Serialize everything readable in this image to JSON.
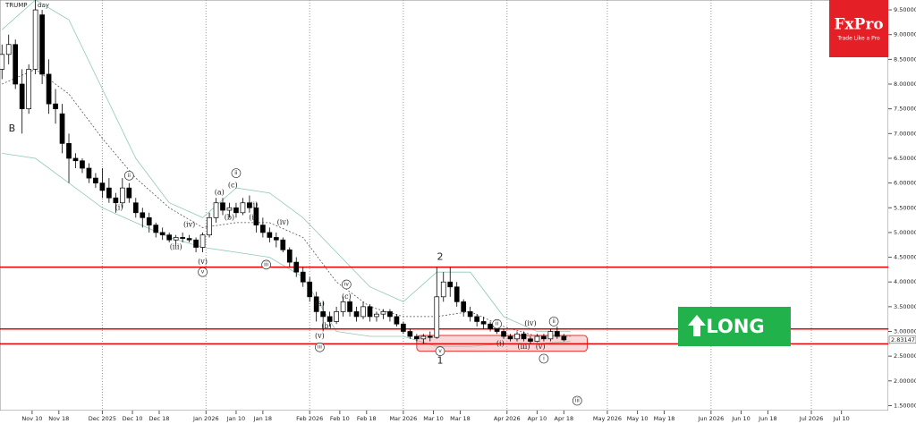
{
  "chart_data": {
    "type": "candlestick",
    "title": "TRUMP",
    "timeframe": "day",
    "xlim": [
      -0.6,
      265
    ],
    "ylim": [
      1.4,
      9.7
    ],
    "xticks": [
      {
        "value": 9,
        "label": "Nov 10"
      },
      {
        "value": 17,
        "label": "Nov 18"
      },
      {
        "value": 30,
        "label": "Dec 2025"
      },
      {
        "value": 39,
        "label": "Dec 10"
      },
      {
        "value": 47,
        "label": "Dec 18"
      },
      {
        "value": 61,
        "label": "Jan 2026"
      },
      {
        "value": 70,
        "label": "Jan 10"
      },
      {
        "value": 78,
        "label": "Jan 18"
      },
      {
        "value": 92,
        "label": "Feb 2026"
      },
      {
        "value": 101,
        "label": "Feb 10"
      },
      {
        "value": 109,
        "label": "Feb 18"
      },
      {
        "value": 120,
        "label": "Mar 2026"
      },
      {
        "value": 129,
        "label": "Mar 10"
      },
      {
        "value": 137,
        "label": "Mar 18"
      },
      {
        "value": 151,
        "label": "Apr 2026"
      },
      {
        "value": 160,
        "label": "Apr 10"
      },
      {
        "value": 168,
        "label": "Apr 18"
      },
      {
        "value": 181,
        "label": "May 2026"
      },
      {
        "value": 190,
        "label": "May 10"
      },
      {
        "value": 198,
        "label": "May 18"
      },
      {
        "value": 212,
        "label": "Jun 2026"
      },
      {
        "value": 221,
        "label": "Jun 10"
      },
      {
        "value": 229,
        "label": "Jun 18"
      },
      {
        "value": 242,
        "label": "Jul 2026"
      },
      {
        "value": 251,
        "label": "Jul 10"
      }
    ],
    "yticks": [
      {
        "value": 9.5,
        "label": "9.50000"
      },
      {
        "value": 9,
        "label": "9.00000"
      },
      {
        "value": 8.5,
        "label": "8.50000"
      },
      {
        "value": 8,
        "label": "8.00000"
      },
      {
        "value": 7.5,
        "label": "7.50000"
      },
      {
        "value": 7,
        "label": "7.00000"
      },
      {
        "value": 6.5,
        "label": "6.50000"
      },
      {
        "value": 6,
        "label": "6.00000"
      },
      {
        "value": 5.5,
        "label": "5.50000"
      },
      {
        "value": 5,
        "label": "5.00000"
      },
      {
        "value": 4.5,
        "label": "4.50000"
      },
      {
        "value": 4,
        "label": "4.00000"
      },
      {
        "value": 3.5,
        "label": "3.50000"
      },
      {
        "value": 3,
        "label": "3.00000"
      },
      {
        "value": 2.5,
        "label": "2.50000"
      },
      {
        "value": 2,
        "label": "2.00000"
      },
      {
        "value": 1.5,
        "label": "1.50000"
      }
    ],
    "x": [
      0,
      2,
      4,
      6,
      8,
      10,
      12,
      14,
      16,
      18,
      20,
      22,
      24,
      26,
      28,
      30,
      32,
      34,
      36,
      38,
      40,
      42,
      44,
      46,
      48,
      50,
      52,
      54,
      56,
      58,
      60,
      62,
      64,
      66,
      68,
      70,
      72,
      74,
      76,
      78,
      80,
      82,
      84,
      86,
      88,
      90,
      92,
      94,
      96,
      98,
      100,
      102,
      104,
      106,
      108,
      110,
      112,
      114,
      116,
      118,
      120,
      122,
      124,
      126,
      128,
      130,
      132,
      134,
      136,
      138,
      140,
      142,
      144,
      146,
      148,
      150,
      152,
      154,
      156,
      158,
      160,
      162,
      164,
      166,
      168
    ],
    "open": [
      8.3,
      8.6,
      8.8,
      8.0,
      7.5,
      8.3,
      9.4,
      8.2,
      7.6,
      7.4,
      6.8,
      6.5,
      6.45,
      6.3,
      6.1,
      6.0,
      5.9,
      5.7,
      5.6,
      5.9,
      5.6,
      5.4,
      5.3,
      5.15,
      5.0,
      4.95,
      4.85,
      4.9,
      4.88,
      4.85,
      4.7,
      4.95,
      5.3,
      5.6,
      5.45,
      5.5,
      5.4,
      5.6,
      5.5,
      5.15,
      5.0,
      4.9,
      4.85,
      4.65,
      4.4,
      4.2,
      4.0,
      3.7,
      3.4,
      3.3,
      3.2,
      3.4,
      3.6,
      3.4,
      3.3,
      3.5,
      3.3,
      3.35,
      3.4,
      3.3,
      3.15,
      3.0,
      2.9,
      2.85,
      2.9,
      2.88,
      3.7,
      4.0,
      3.9,
      3.6,
      3.4,
      3.3,
      3.2,
      3.15,
      3.05,
      3.0,
      2.9,
      2.85,
      2.95,
      2.85,
      2.8,
      2.9,
      2.85,
      3.0,
      2.9
    ],
    "high": [
      8.8,
      9.0,
      8.9,
      8.3,
      8.4,
      9.9,
      9.5,
      8.5,
      7.9,
      7.6,
      7.0,
      6.6,
      6.5,
      6.4,
      6.2,
      6.3,
      6.1,
      5.8,
      6.1,
      6.0,
      5.7,
      5.5,
      5.4,
      5.2,
      5.1,
      5.0,
      4.95,
      5.0,
      4.95,
      4.9,
      5.0,
      5.4,
      5.7,
      5.7,
      5.6,
      5.6,
      5.7,
      5.75,
      5.6,
      5.3,
      5.1,
      5.0,
      4.9,
      4.7,
      4.5,
      4.3,
      4.1,
      3.8,
      3.6,
      3.4,
      3.5,
      3.7,
      3.65,
      3.5,
      3.6,
      3.55,
      3.4,
      3.45,
      3.45,
      3.35,
      3.2,
      3.05,
      2.95,
      2.95,
      3.0,
      4.3,
      4.2,
      4.3,
      4.0,
      3.65,
      3.5,
      3.35,
      3.3,
      3.2,
      3.1,
      3.05,
      2.95,
      3.0,
      3.0,
      2.9,
      2.95,
      2.95,
      3.05,
      3.1,
      2.95
    ],
    "low": [
      8.1,
      8.4,
      7.9,
      7.0,
      7.4,
      8.2,
      8.0,
      7.4,
      7.2,
      6.6,
      6.0,
      6.3,
      6.2,
      6.0,
      5.9,
      5.7,
      5.6,
      5.4,
      5.5,
      5.6,
      5.3,
      5.1,
      5.0,
      4.9,
      4.85,
      4.8,
      4.75,
      4.8,
      4.8,
      4.6,
      4.6,
      4.9,
      5.2,
      5.35,
      5.3,
      5.3,
      5.35,
      5.4,
      5.0,
      4.9,
      4.8,
      4.7,
      4.6,
      4.3,
      4.1,
      3.9,
      3.6,
      3.2,
      3.0,
      3.1,
      3.15,
      3.3,
      3.3,
      3.2,
      3.25,
      3.2,
      3.2,
      3.25,
      3.2,
      3.1,
      2.95,
      2.85,
      2.8,
      2.75,
      2.8,
      2.85,
      3.6,
      3.7,
      3.5,
      3.3,
      3.2,
      3.1,
      3.05,
      3.0,
      2.95,
      2.85,
      2.8,
      2.8,
      2.8,
      2.75,
      2.78,
      2.8,
      2.8,
      2.85,
      2.8
    ],
    "close": [
      8.6,
      8.8,
      8.0,
      7.5,
      8.3,
      9.5,
      8.2,
      7.6,
      7.5,
      6.8,
      6.5,
      6.45,
      6.3,
      6.1,
      6.0,
      5.85,
      5.7,
      5.6,
      5.9,
      5.7,
      5.4,
      5.3,
      5.15,
      5.0,
      4.95,
      4.85,
      4.9,
      4.88,
      4.85,
      4.7,
      4.95,
      5.3,
      5.6,
      5.45,
      5.5,
      5.4,
      5.6,
      5.5,
      5.15,
      5.0,
      4.9,
      4.85,
      4.65,
      4.4,
      4.2,
      4.0,
      3.7,
      3.4,
      3.3,
      3.2,
      3.4,
      3.6,
      3.4,
      3.3,
      3.5,
      3.3,
      3.35,
      3.4,
      3.3,
      3.15,
      3.0,
      2.9,
      2.85,
      2.9,
      2.88,
      3.7,
      4.0,
      3.9,
      3.6,
      3.4,
      3.3,
      3.2,
      3.15,
      3.05,
      3.0,
      2.9,
      2.85,
      2.95,
      2.85,
      2.8,
      2.9,
      2.85,
      3.0,
      2.9,
      2.83
    ],
    "bands": {
      "x": [
        0,
        10,
        20,
        30,
        40,
        50,
        60,
        70,
        80,
        90,
        100,
        110,
        120,
        130,
        140,
        150,
        160,
        170
      ],
      "upper": [
        9.1,
        9.7,
        9.3,
        7.9,
        6.5,
        5.6,
        5.3,
        5.9,
        5.8,
        5.3,
        4.6,
        3.9,
        3.6,
        4.2,
        4.2,
        3.3,
        3.0,
        3.0
      ],
      "middle": [
        8.0,
        8.3,
        7.8,
        6.9,
        6.1,
        5.5,
        5.1,
        5.2,
        5.2,
        4.9,
        4.0,
        3.5,
        3.3,
        3.3,
        3.4,
        3.1,
        2.9,
        2.9
      ],
      "lower": [
        6.6,
        6.5,
        6.0,
        5.5,
        5.2,
        4.9,
        4.7,
        4.6,
        4.5,
        4.1,
        3.0,
        2.9,
        2.9,
        2.7,
        2.7,
        2.75,
        2.75,
        2.8
      ]
    },
    "levels": [
      4.3,
      3.05,
      2.75
    ],
    "zone": {
      "x": [
        124,
        175
      ],
      "y": [
        2.6,
        2.92
      ]
    },
    "last_price": 2.83147,
    "annotations": [
      {
        "text": "B",
        "x": 3,
        "y": 7.1,
        "circled": false
      },
      {
        "text": "2",
        "x": 131,
        "y": 4.5,
        "circled": false
      },
      {
        "text": "1",
        "x": 131,
        "y": 2.4,
        "circled": false
      },
      {
        "text": "ii",
        "x": 38,
        "y": 6.15,
        "circled": true
      },
      {
        "text": "(i)",
        "x": 35,
        "y": 5.5,
        "circled": false
      },
      {
        "text": "(iii)",
        "x": 52,
        "y": 4.7,
        "circled": false
      },
      {
        "text": "(iv)",
        "x": 56,
        "y": 5.15,
        "circled": false
      },
      {
        "text": "(v)",
        "x": 60,
        "y": 4.4,
        "circled": false
      },
      {
        "text": "v",
        "x": 60,
        "y": 4.2,
        "circled": true
      },
      {
        "text": "(a)",
        "x": 65,
        "y": 5.8,
        "circled": false
      },
      {
        "text": "(b)",
        "x": 68,
        "y": 5.3,
        "circled": false
      },
      {
        "text": "(c)",
        "x": 69,
        "y": 5.95,
        "circled": false
      },
      {
        "text": "ii",
        "x": 70,
        "y": 6.2,
        "circled": true
      },
      {
        "text": "(i)",
        "x": 75,
        "y": 5.3,
        "circled": false
      },
      {
        "text": "(ii)",
        "x": 75,
        "y": 5.55,
        "circled": false
      },
      {
        "text": "(iv)",
        "x": 84,
        "y": 5.2,
        "circled": false
      },
      {
        "text": "iii",
        "x": 79,
        "y": 4.35,
        "circled": true
      },
      {
        "text": "iv",
        "x": 103,
        "y": 3.95,
        "circled": true
      },
      {
        "text": "(c)",
        "x": 103,
        "y": 3.7,
        "circled": false
      },
      {
        "text": "(a)",
        "x": 95,
        "y": 3.55,
        "circled": false
      },
      {
        "text": "(b)",
        "x": 97,
        "y": 3.1,
        "circled": false
      },
      {
        "text": "(v)",
        "x": 95,
        "y": 2.9,
        "circled": false
      },
      {
        "text": "iii",
        "x": 95,
        "y": 2.68,
        "circled": true
      },
      {
        "text": "v",
        "x": 131,
        "y": 2.6,
        "circled": true
      },
      {
        "text": "ii",
        "x": 148,
        "y": 3.15,
        "circled": true
      },
      {
        "text": "(iv)",
        "x": 158,
        "y": 3.15,
        "circled": false
      },
      {
        "text": "(i)",
        "x": 149,
        "y": 2.75,
        "circled": false
      },
      {
        "text": "(iii)",
        "x": 156,
        "y": 2.68,
        "circled": false
      },
      {
        "text": "(v)",
        "x": 161,
        "y": 2.68,
        "circled": false
      },
      {
        "text": "i",
        "x": 162,
        "y": 2.45,
        "circled": true
      },
      {
        "text": "ii",
        "x": 165,
        "y": 3.2,
        "circled": true
      },
      {
        "text": "iii",
        "x": 172,
        "y": 1.6,
        "circled": true
      }
    ],
    "brand": {
      "name": "FxPro",
      "tagline": "Trade Like a Pro"
    },
    "signal": "LONG"
  }
}
